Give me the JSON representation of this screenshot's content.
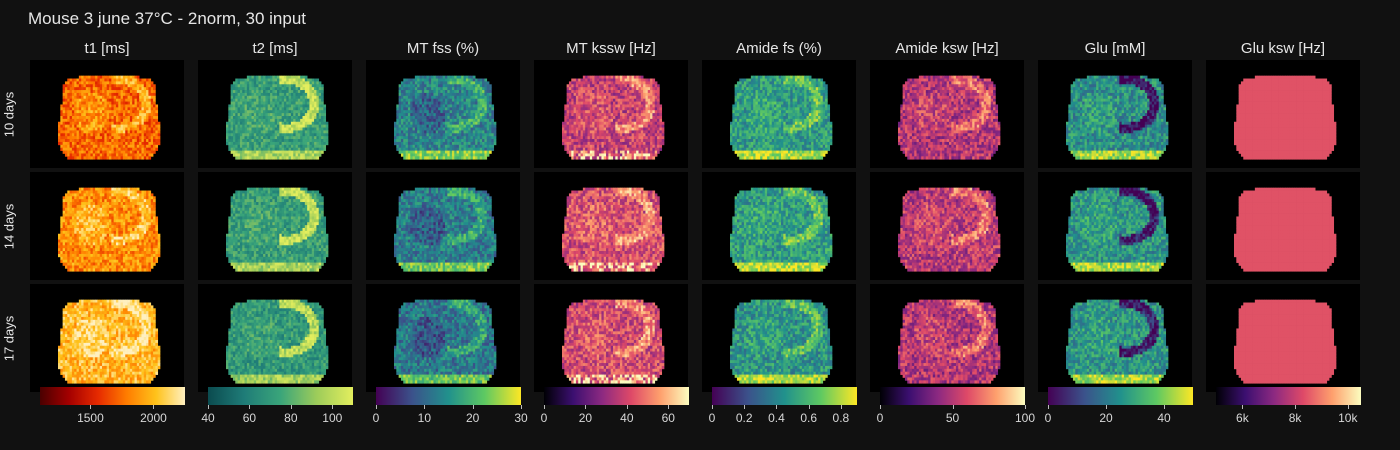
{
  "figure": {
    "title": "Mouse 3 june 37°C - 2norm, 30 input"
  },
  "chart_data": {
    "type": "heatmap",
    "title": "Mouse 3 june 37°C - 2norm, 30 input",
    "rows": [
      "10 days",
      "14 days",
      "17 days"
    ],
    "columns": [
      {
        "title": "t1 [ms]",
        "colormap": "hot",
        "range": [
          1100,
          2250
        ],
        "ticks": [
          {
            "v": 1500,
            "label": "1500"
          },
          {
            "v": 2000,
            "label": "2000"
          }
        ]
      },
      {
        "title": "t2 [ms]",
        "colormap": "viridis-teal",
        "range": [
          40,
          110
        ],
        "ticks": [
          {
            "v": 40,
            "label": "40"
          },
          {
            "v": 60,
            "label": "60"
          },
          {
            "v": 80,
            "label": "80"
          },
          {
            "v": 100,
            "label": "100"
          }
        ]
      },
      {
        "title": "MT fss (%)",
        "colormap": "viridis",
        "range": [
          0,
          30
        ],
        "ticks": [
          {
            "v": 0,
            "label": "0"
          },
          {
            "v": 10,
            "label": "10"
          },
          {
            "v": 20,
            "label": "20"
          },
          {
            "v": 30,
            "label": "30"
          }
        ]
      },
      {
        "title": "MT kssw [Hz]",
        "colormap": "magma",
        "range": [
          0,
          70
        ],
        "ticks": [
          {
            "v": 0,
            "label": "0"
          },
          {
            "v": 20,
            "label": "20"
          },
          {
            "v": 40,
            "label": "40"
          },
          {
            "v": 60,
            "label": "60"
          }
        ]
      },
      {
        "title": "Amide fs (%)",
        "colormap": "viridis",
        "range": [
          0,
          0.9
        ],
        "ticks": [
          {
            "v": 0,
            "label": "0"
          },
          {
            "v": 0.2,
            "label": "0.2"
          },
          {
            "v": 0.4,
            "label": "0.4"
          },
          {
            "v": 0.6,
            "label": "0.6"
          },
          {
            "v": 0.8,
            "label": "0.8"
          }
        ]
      },
      {
        "title": "Amide ksw [Hz]",
        "colormap": "magma",
        "range": [
          0,
          100
        ],
        "ticks": [
          {
            "v": 0,
            "label": "0"
          },
          {
            "v": 50,
            "label": "50"
          },
          {
            "v": 100,
            "label": "100"
          }
        ]
      },
      {
        "title": "Glu [mM]",
        "colormap": "viridis",
        "range": [
          0,
          50
        ],
        "ticks": [
          {
            "v": 0,
            "label": "0"
          },
          {
            "v": 20,
            "label": "20"
          },
          {
            "v": 40,
            "label": "40"
          }
        ]
      },
      {
        "title": "Glu ksw [Hz]",
        "colormap": "magma",
        "range": [
          5000,
          10500
        ],
        "ticks": [
          {
            "v": 6000,
            "label": "6k"
          },
          {
            "v": 8000,
            "label": "8k"
          },
          {
            "v": 10000,
            "label": "10k"
          }
        ]
      }
    ],
    "map_levels": [
      [
        0.55,
        0.45,
        0.45,
        0.55,
        0.55,
        0.5,
        0.5,
        0.78
      ],
      [
        0.65,
        0.45,
        0.42,
        0.6,
        0.55,
        0.52,
        0.52,
        0.78
      ],
      [
        0.78,
        0.42,
        0.4,
        0.58,
        0.52,
        0.5,
        0.52,
        0.78
      ]
    ],
    "grid": false
  }
}
